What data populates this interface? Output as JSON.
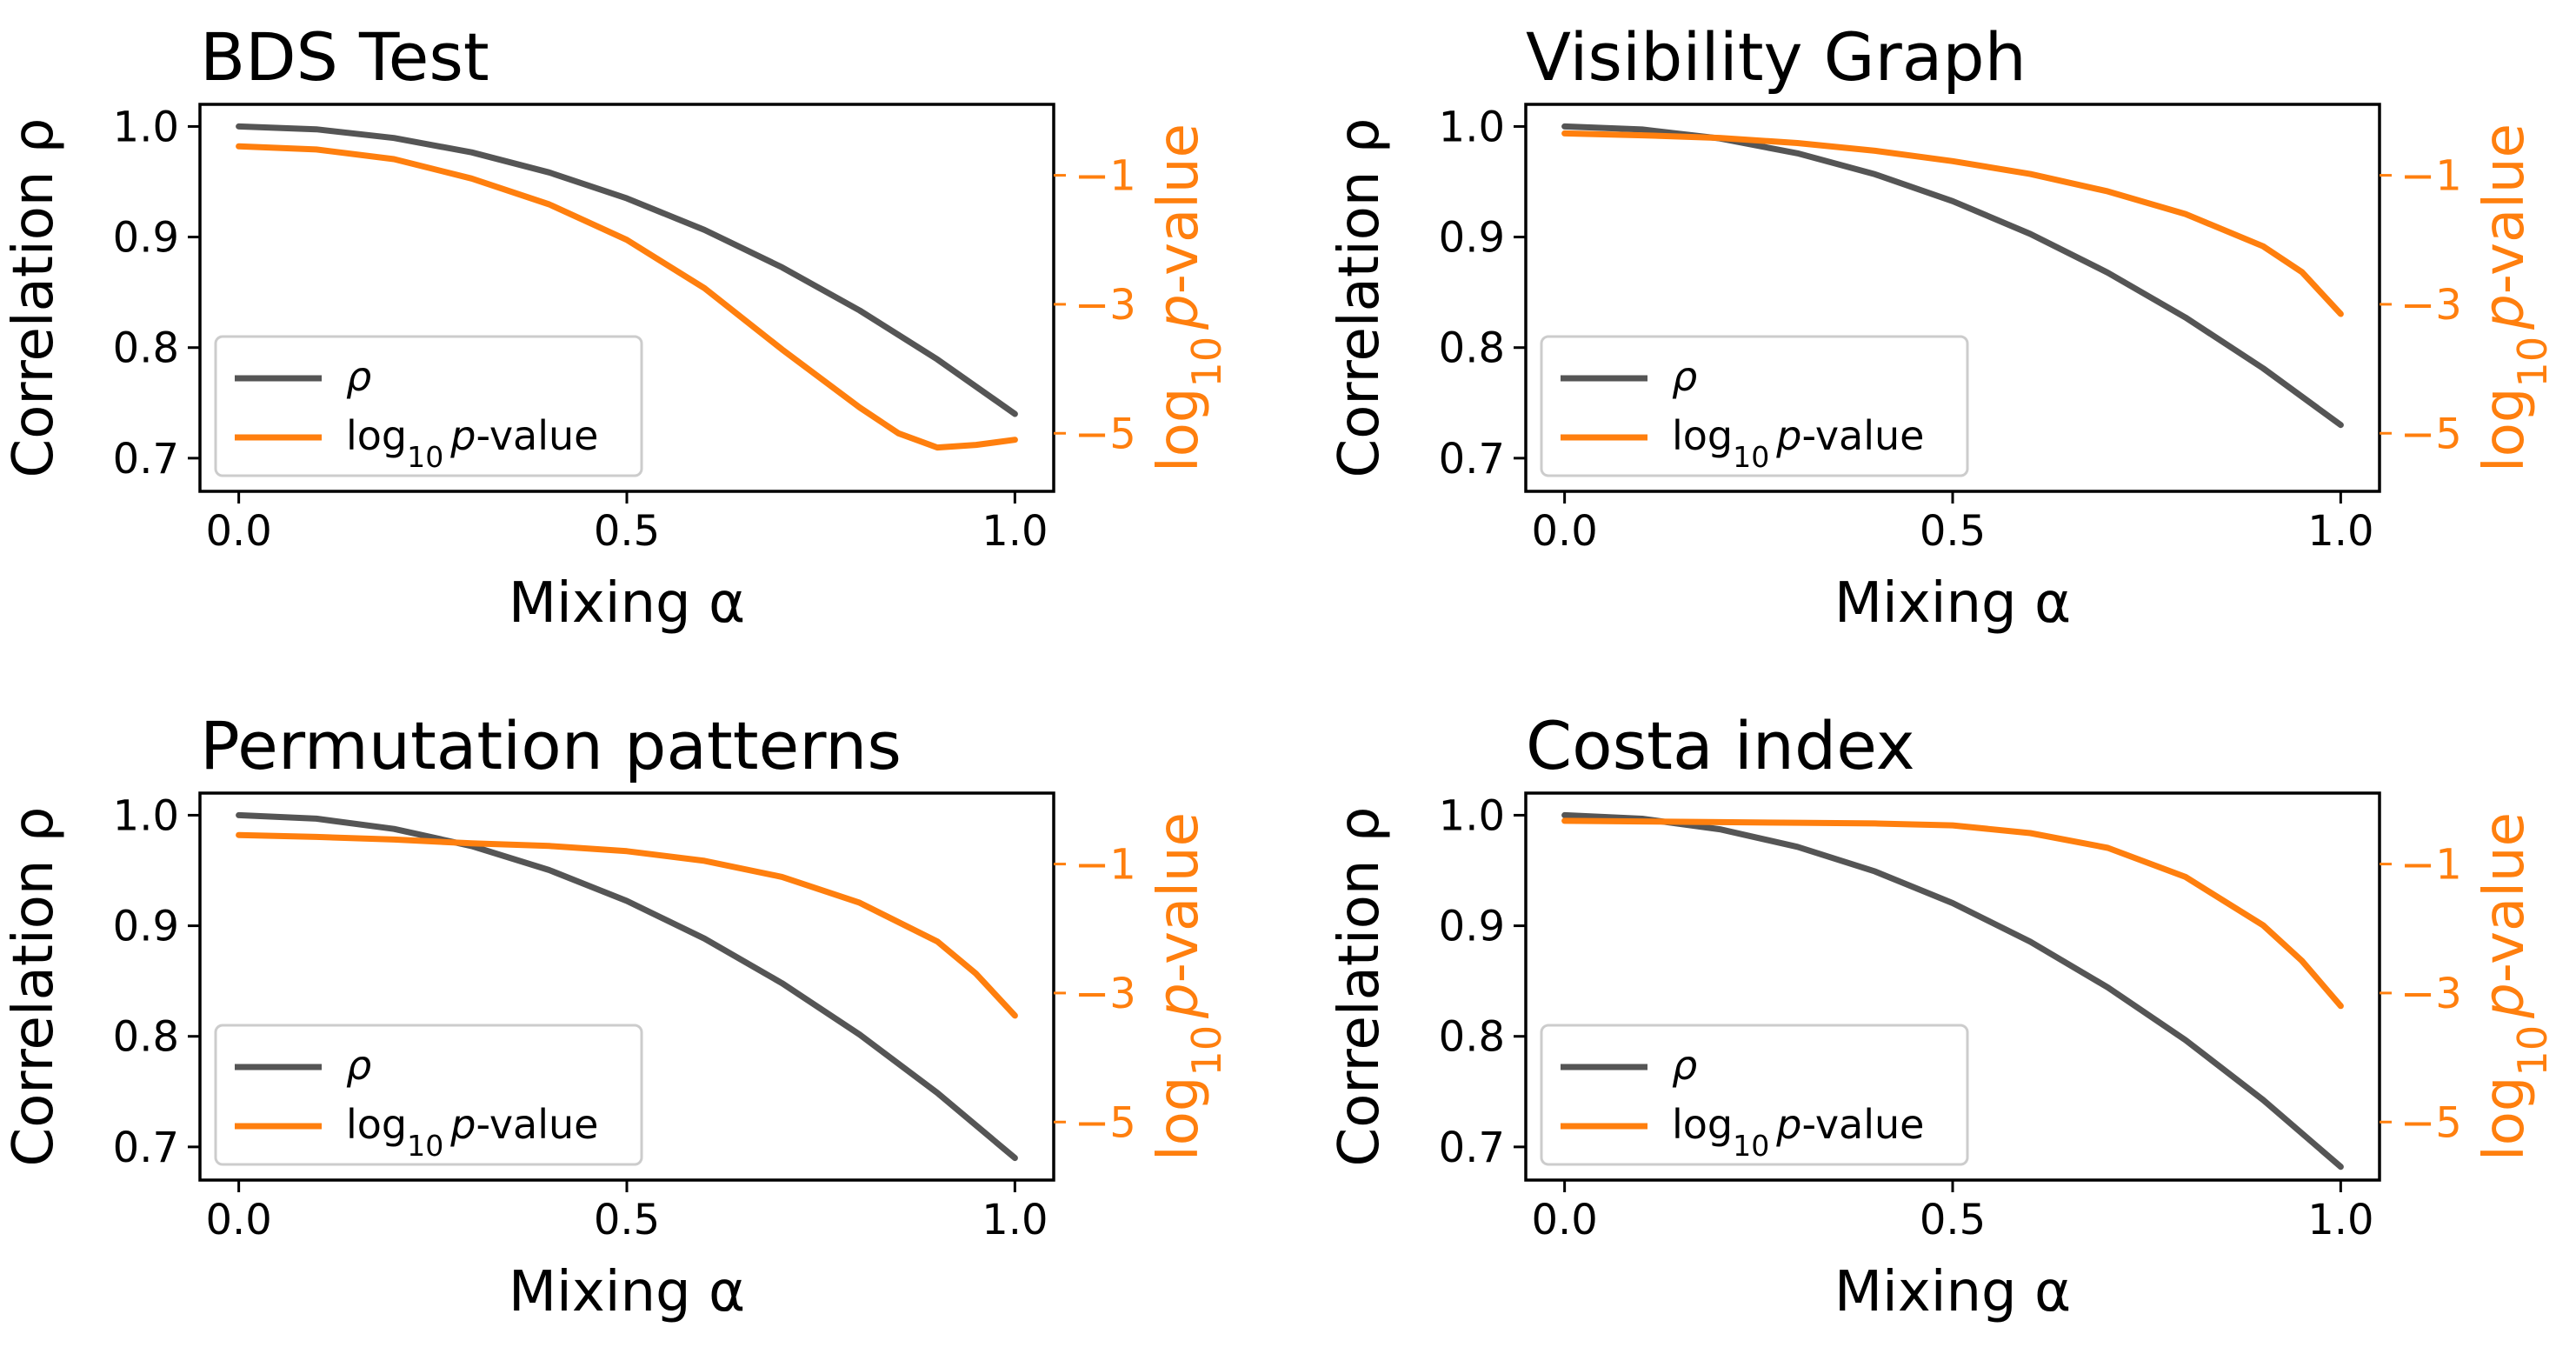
{
  "figure": {
    "background": "#ffffff",
    "colors": {
      "rho": "#555555",
      "pvalue": "#ff7f0e",
      "axes": "#000000",
      "legend_border": "#cccccc"
    }
  },
  "chart_data": [
    {
      "type": "line",
      "title": "BDS Test",
      "xlabel": "Mixing α",
      "ylabel_left": "Correlation ρ",
      "ylabel_right": "log10 p-value",
      "xlim": [
        -0.05,
        1.05
      ],
      "ylim_left": [
        0.67,
        1.02
      ],
      "ylim_right": [
        -5.9,
        0.1
      ],
      "xticks": [
        0.0,
        0.5,
        1.0
      ],
      "xtick_labels": [
        "0.0",
        "0.5",
        "1.0"
      ],
      "yticks_left": [
        1.0,
        0.9,
        0.8,
        0.7
      ],
      "ytick_labels_left": [
        "1.0",
        "0.9",
        "0.8",
        "0.7"
      ],
      "yticks_right": [
        -1,
        -3,
        -5
      ],
      "ytick_labels_right": [
        "−1",
        "−3",
        "−5"
      ],
      "legend": {
        "location": "lower-left",
        "entries": [
          "ρ",
          "log10 p-value"
        ]
      },
      "series": [
        {
          "name": "ρ",
          "axis": "left",
          "x": [
            0,
            0.1,
            0.2,
            0.3,
            0.4,
            0.5,
            0.6,
            0.7,
            0.8,
            0.9,
            1.0
          ],
          "values": [
            1.0,
            0.9974,
            0.9896,
            0.9766,
            0.9584,
            0.935,
            0.9064,
            0.8726,
            0.8336,
            0.7894,
            0.74
          ]
        },
        {
          "name": "log10 p-value",
          "axis": "right",
          "x": [
            0,
            0.1,
            0.2,
            0.3,
            0.4,
            0.5,
            0.6,
            0.7,
            0.8,
            0.85,
            0.9,
            0.95,
            1.0
          ],
          "values": [
            -0.55,
            -0.6,
            -0.75,
            -1.05,
            -1.45,
            -2.0,
            -2.75,
            -3.7,
            -4.6,
            -5.0,
            -5.22,
            -5.18,
            -5.1
          ]
        }
      ]
    },
    {
      "type": "line",
      "title": "Visibility Graph",
      "xlabel": "Mixing α",
      "ylabel_left": "Correlation ρ",
      "ylabel_right": "log10 p-value",
      "xlim": [
        -0.05,
        1.05
      ],
      "ylim_left": [
        0.67,
        1.02
      ],
      "ylim_right": [
        -5.9,
        0.1
      ],
      "xticks": [
        0.0,
        0.5,
        1.0
      ],
      "xtick_labels": [
        "0.0",
        "0.5",
        "1.0"
      ],
      "yticks_left": [
        1.0,
        0.9,
        0.8,
        0.7
      ],
      "ytick_labels_left": [
        "1.0",
        "0.9",
        "0.8",
        "0.7"
      ],
      "yticks_right": [
        -1,
        -3,
        -5
      ],
      "ytick_labels_right": [
        "−1",
        "−3",
        "−5"
      ],
      "legend": {
        "location": "lower-left",
        "entries": [
          "ρ",
          "log10 p-value"
        ]
      },
      "series": [
        {
          "name": "ρ",
          "axis": "left",
          "x": [
            0,
            0.1,
            0.2,
            0.3,
            0.4,
            0.5,
            0.6,
            0.7,
            0.8,
            0.9,
            1.0
          ],
          "values": [
            1.0,
            0.9973,
            0.9892,
            0.9757,
            0.9568,
            0.9325,
            0.9028,
            0.8677,
            0.8272,
            0.7813,
            0.73
          ]
        },
        {
          "name": "log10 p-value",
          "axis": "right",
          "x": [
            0,
            0.1,
            0.2,
            0.3,
            0.4,
            0.5,
            0.6,
            0.7,
            0.8,
            0.9,
            0.95,
            1.0
          ],
          "values": [
            -0.35,
            -0.38,
            -0.42,
            -0.5,
            -0.62,
            -0.78,
            -0.98,
            -1.25,
            -1.6,
            -2.1,
            -2.5,
            -3.15
          ]
        }
      ]
    },
    {
      "type": "line",
      "title": "Permutation patterns",
      "xlabel": "Mixing α",
      "ylabel_left": "Correlation ρ",
      "ylabel_right": "log10 p-value",
      "xlim": [
        -0.05,
        1.05
      ],
      "ylim_left": [
        0.67,
        1.02
      ],
      "ylim_right": [
        -5.9,
        0.1
      ],
      "xticks": [
        0.0,
        0.5,
        1.0
      ],
      "xtick_labels": [
        "0.0",
        "0.5",
        "1.0"
      ],
      "yticks_left": [
        1.0,
        0.9,
        0.8,
        0.7
      ],
      "ytick_labels_left": [
        "1.0",
        "0.9",
        "0.8",
        "0.7"
      ],
      "yticks_right": [
        -1,
        -3,
        -5
      ],
      "ytick_labels_right": [
        "−1",
        "−3",
        "−5"
      ],
      "legend": {
        "location": "lower-left",
        "entries": [
          "ρ",
          "log10 p-value"
        ]
      },
      "series": [
        {
          "name": "ρ",
          "axis": "left",
          "x": [
            0,
            0.1,
            0.2,
            0.3,
            0.4,
            0.5,
            0.6,
            0.7,
            0.8,
            0.9,
            1.0
          ],
          "values": [
            1.0,
            0.9969,
            0.9876,
            0.9721,
            0.9504,
            0.9225,
            0.8884,
            0.8481,
            0.8016,
            0.7489,
            0.69
          ]
        },
        {
          "name": "log10 p-value",
          "axis": "right",
          "x": [
            0,
            0.1,
            0.2,
            0.3,
            0.4,
            0.5,
            0.6,
            0.7,
            0.8,
            0.9,
            0.95,
            1.0
          ],
          "values": [
            -0.55,
            -0.58,
            -0.62,
            -0.68,
            -0.72,
            -0.8,
            -0.95,
            -1.2,
            -1.6,
            -2.2,
            -2.7,
            -3.35
          ]
        }
      ]
    },
    {
      "type": "line",
      "title": "Costa index",
      "xlabel": "Mixing α",
      "ylabel_left": "Correlation ρ",
      "ylabel_right": "log10 p-value",
      "xlim": [
        -0.05,
        1.05
      ],
      "ylim_left": [
        0.67,
        1.02
      ],
      "ylim_right": [
        -5.9,
        0.1
      ],
      "xticks": [
        0.0,
        0.5,
        1.0
      ],
      "xtick_labels": [
        "0.0",
        "0.5",
        "1.0"
      ],
      "yticks_left": [
        1.0,
        0.9,
        0.8,
        0.7
      ],
      "ytick_labels_left": [
        "1.0",
        "0.9",
        "0.8",
        "0.7"
      ],
      "yticks_right": [
        -1,
        -3,
        -5
      ],
      "ytick_labels_right": [
        "−1",
        "−3",
        "−5"
      ],
      "legend": {
        "location": "lower-left",
        "entries": [
          "ρ",
          "log10 p-value"
        ]
      },
      "series": [
        {
          "name": "ρ",
          "axis": "left",
          "x": [
            0,
            0.1,
            0.2,
            0.3,
            0.4,
            0.5,
            0.6,
            0.7,
            0.8,
            0.9,
            1.0
          ],
          "values": [
            1.0,
            0.9968,
            0.9873,
            0.9714,
            0.9491,
            0.9205,
            0.8856,
            0.8442,
            0.7966,
            0.7425,
            0.682
          ]
        },
        {
          "name": "log10 p-value",
          "axis": "right",
          "x": [
            0,
            0.1,
            0.2,
            0.3,
            0.4,
            0.5,
            0.6,
            0.7,
            0.8,
            0.9,
            0.95,
            1.0
          ],
          "values": [
            -0.33,
            -0.34,
            -0.35,
            -0.36,
            -0.37,
            -0.4,
            -0.52,
            -0.75,
            -1.2,
            -1.95,
            -2.5,
            -3.2
          ]
        }
      ]
    }
  ]
}
